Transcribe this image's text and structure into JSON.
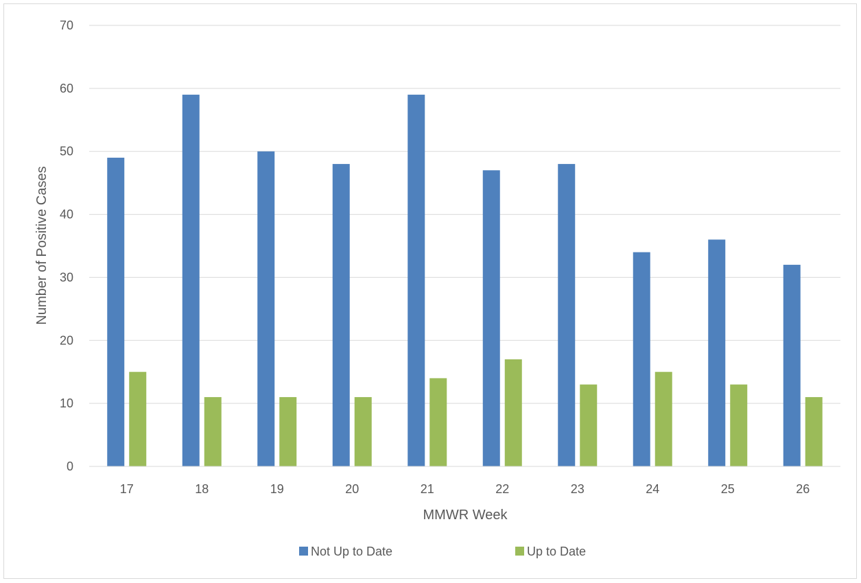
{
  "chart_data": {
    "type": "bar",
    "title": "",
    "xlabel": "MMWR Week",
    "ylabel": "Number of Positive Cases",
    "categories": [
      "17",
      "18",
      "19",
      "20",
      "21",
      "22",
      "23",
      "24",
      "25",
      "26"
    ],
    "series": [
      {
        "name": "Not Up to Date",
        "color": "#4f81bd",
        "values": [
          49,
          59,
          50,
          48,
          59,
          47,
          48,
          34,
          36,
          32
        ]
      },
      {
        "name": "Up to Date",
        "color": "#9bbb59",
        "values": [
          15,
          11,
          11,
          11,
          14,
          17,
          13,
          15,
          13,
          11
        ]
      }
    ],
    "ylim": [
      0,
      70
    ],
    "yticks": [
      0,
      10,
      20,
      30,
      40,
      50,
      60,
      70
    ],
    "grid": true,
    "legend": "bottom"
  }
}
